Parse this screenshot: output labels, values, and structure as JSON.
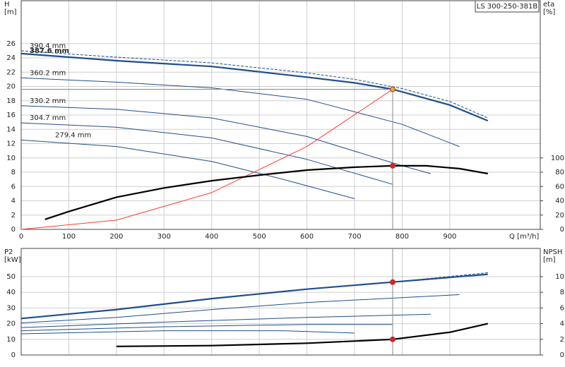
{
  "chart_data": [
    {
      "type": "line",
      "title": "LS 300-250-381B",
      "ylabel": [
        "H",
        "[m]"
      ],
      "y2label": [
        "eta",
        "[%]"
      ],
      "xlabel": "Q [m³/h]",
      "xlim": [
        0,
        1090
      ],
      "xticks": [
        0,
        100,
        200,
        300,
        400,
        500,
        600,
        700,
        800,
        900
      ],
      "ylim": [
        0,
        32
      ],
      "yticks": [
        0,
        2,
        4,
        6,
        8,
        10,
        12,
        14,
        16,
        18,
        20,
        22,
        24,
        26
      ],
      "y2lim": [
        0,
        320
      ],
      "y2ticks": [
        0,
        20,
        40,
        60,
        80,
        100
      ],
      "grid": true,
      "series": [
        {
          "name": "390.4 mm",
          "color": "#1f4e8c",
          "x": [
            0,
            200,
            400,
            600,
            700,
            800,
            900,
            980
          ],
          "values": [
            25,
            24.1,
            23.3,
            21.9,
            21.0,
            19.7,
            17.9,
            15.6
          ],
          "dashed": true
        },
        {
          "name": "387.6 mm",
          "color": "#1f4e8c",
          "x": [
            0,
            200,
            400,
            600,
            700,
            780,
            900,
            980
          ],
          "values": [
            24.6,
            23.6,
            22.8,
            21.3,
            20.5,
            19.6,
            17.4,
            15.2
          ],
          "bold": true
        },
        {
          "name": "360.2 mm",
          "color": "#1f4e8c",
          "x": [
            0,
            200,
            400,
            600,
            800,
            920
          ],
          "values": [
            21.2,
            20.6,
            19.8,
            18.2,
            14.7,
            11.6
          ]
        },
        {
          "name": "330.2 mm",
          "color": "#1f4e8c",
          "x": [
            0,
            200,
            400,
            600,
            800,
            860
          ],
          "values": [
            17.3,
            16.8,
            15.6,
            13.0,
            8.9,
            7.8
          ]
        },
        {
          "name": "304.7 mm",
          "color": "#1f4e8c",
          "x": [
            0,
            200,
            400,
            600,
            780
          ],
          "values": [
            14.9,
            14.3,
            12.8,
            9.8,
            6.3
          ]
        },
        {
          "name": "279.4 mm",
          "color": "#1f4e8c",
          "x": [
            0,
            200,
            400,
            550,
            700
          ],
          "values": [
            12.5,
            11.6,
            9.5,
            7.0,
            4.3
          ]
        },
        {
          "color": "#ff3b30",
          "x": [
            0,
            200,
            400,
            600,
            780
          ],
          "values": [
            0,
            1.29,
            5.15,
            11.6,
            19.6
          ]
        },
        {
          "color": "#000000",
          "axis": "y2",
          "x": [
            50,
            100,
            200,
            300,
            400,
            500,
            600,
            700,
            780,
            850,
            920,
            980
          ],
          "values": [
            14,
            25,
            45,
            58,
            68,
            76,
            83,
            87,
            89,
            89,
            85,
            78
          ],
          "bold": true
        },
        {
          "color": "#f5a623",
          "marker": true,
          "x": [
            780
          ],
          "values": [
            19.6
          ]
        },
        {
          "color": "#e02020",
          "marker": true,
          "axis": "y2",
          "x": [
            780
          ],
          "values": [
            89
          ]
        }
      ]
    },
    {
      "type": "line",
      "ylabel": [
        "P2",
        "[kW]"
      ],
      "y2label": [
        "NPSH",
        "[m]"
      ],
      "xlim": [
        0,
        1090
      ],
      "ylim": [
        0,
        68
      ],
      "yticks": [
        0,
        10,
        20,
        30,
        40,
        50
      ],
      "y2lim": [
        0,
        13.6
      ],
      "y2ticks": [
        0,
        2,
        4,
        6,
        8,
        10
      ],
      "grid": true,
      "series": [
        {
          "color": "#1f4e8c",
          "x": [
            0,
            200,
            400,
            600,
            780,
            980
          ],
          "values": [
            23.3,
            29,
            36,
            42,
            46.5,
            52.5
          ],
          "dashed": true
        },
        {
          "color": "#1f4e8c",
          "x": [
            0,
            200,
            400,
            600,
            780,
            980
          ],
          "values": [
            23.3,
            29,
            36,
            42,
            46.5,
            51.5
          ],
          "bold": true
        },
        {
          "color": "#1f4e8c",
          "x": [
            0,
            200,
            400,
            600,
            920
          ],
          "values": [
            20.5,
            24,
            29,
            33.5,
            38.5
          ]
        },
        {
          "color": "#1f4e8c",
          "x": [
            0,
            300,
            600,
            860
          ],
          "values": [
            17.5,
            21,
            24,
            26
          ]
        },
        {
          "color": "#1f4e8c",
          "x": [
            0,
            300,
            600,
            780
          ],
          "values": [
            15.5,
            18,
            19.5,
            19.5
          ]
        },
        {
          "color": "#1f4e8c",
          "x": [
            0,
            300,
            550,
            700
          ],
          "values": [
            13.5,
            15.5,
            15.5,
            14
          ]
        },
        {
          "color": "#000000",
          "axis": "y2",
          "x": [
            200,
            400,
            600,
            780,
            900,
            980
          ],
          "values": [
            1.1,
            1.2,
            1.5,
            2.0,
            2.9,
            4.0
          ],
          "bold": true
        },
        {
          "color": "#e02020",
          "marker": true,
          "x": [
            780
          ],
          "values": [
            46.5
          ]
        },
        {
          "color": "#e02020",
          "marker": true,
          "axis": "y2",
          "x": [
            780
          ],
          "values": [
            2.0
          ]
        }
      ]
    }
  ]
}
